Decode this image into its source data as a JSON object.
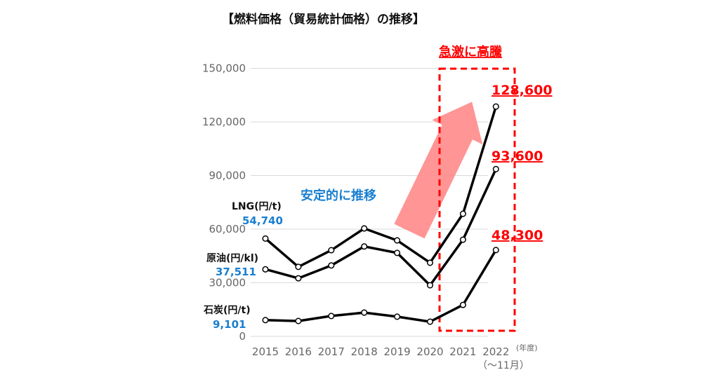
{
  "chart_data": {
    "type": "line",
    "title": "【燃料価格（貿易統計価格）の推移】",
    "x": [
      "2015",
      "2016",
      "2017",
      "2018",
      "2019",
      "2020",
      "2021",
      "2022"
    ],
    "x_unit_label": "(年度)",
    "x_last_note": "（～11月）",
    "ylim": [
      0,
      150000
    ],
    "yticks": [
      "0",
      "30,000",
      "60,000",
      "90,000",
      "120,000",
      "150,000"
    ],
    "grid": true,
    "series": [
      {
        "name": "LNG(円/t)",
        "start_label": "54,740",
        "end_label": "128,600",
        "values": [
          54740,
          38900,
          48200,
          60400,
          53700,
          41200,
          68600,
          128600
        ]
      },
      {
        "name": "原油(円/kl)",
        "start_label": "37,511",
        "end_label": "93,600",
        "values": [
          37511,
          32500,
          39700,
          50300,
          46700,
          28600,
          54100,
          93600
        ]
      },
      {
        "name": "石炭(円/t)",
        "start_label": "9,101",
        "end_label": "48,300",
        "values": [
          9101,
          8600,
          11400,
          13300,
          11000,
          8200,
          17600,
          48300
        ]
      }
    ],
    "annotations": {
      "stable": "安定的に推移",
      "surge": "急激に高騰"
    },
    "colors": {
      "line": "#000000",
      "accent_blue": "#1a7fd0",
      "accent_red": "#ff0000",
      "arrow": "#ff8a8a",
      "grid": "#d9d9d9"
    }
  }
}
